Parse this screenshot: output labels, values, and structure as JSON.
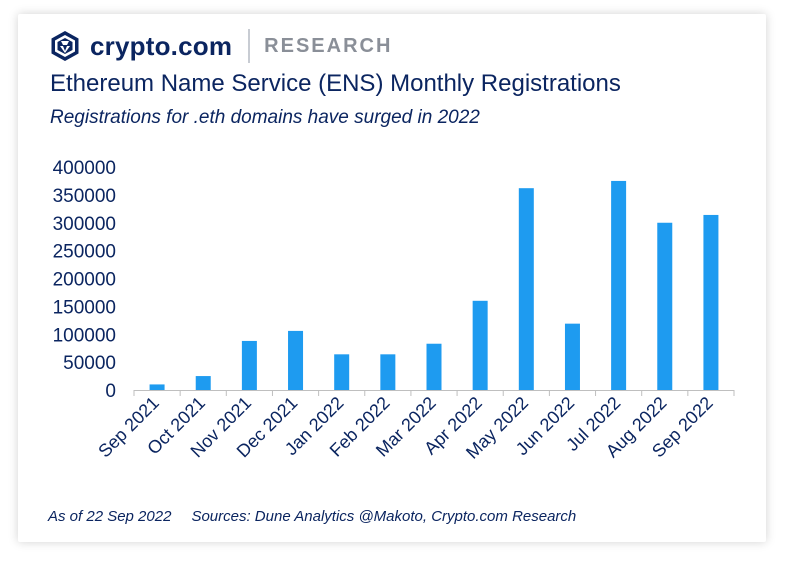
{
  "brand": {
    "name": "crypto.com",
    "section": "RESEARCH"
  },
  "header": {
    "title": "Ethereum Name Service (ENS) Monthly Registrations",
    "subtitle": "Registrations for .eth domains have surged in 2022"
  },
  "footer": {
    "as_of": "As of 22 Sep 2022",
    "sources": "Sources: Dune Analytics @Makoto, Crypto.com Research"
  },
  "colors": {
    "bar": "#1e9bf0",
    "text": "#0b2560",
    "axis": "#bfbfbf"
  },
  "chart_data": {
    "type": "bar",
    "title": "Ethereum Name Service (ENS) Monthly Registrations",
    "subtitle": "Registrations for .eth domains have surged in 2022",
    "xlabel": "",
    "ylabel": "",
    "ylim": [
      0,
      400000
    ],
    "yticks": [
      "0",
      "50000",
      "100000",
      "150000",
      "200000",
      "250000",
      "300000",
      "350000",
      "400000"
    ],
    "grid": false,
    "categories": [
      "Sep 2021",
      "Oct 2021",
      "Nov 2021",
      "Dec 2021",
      "Jan 2022",
      "Feb 2022",
      "Mar 2022",
      "Apr 2022",
      "May 2022",
      "Jun 2022",
      "Jul 2022",
      "Aug 2022",
      "Sep 2022"
    ],
    "values": [
      10000,
      25000,
      88000,
      106000,
      64000,
      64000,
      83000,
      160000,
      362000,
      119000,
      375000,
      300000,
      314000
    ]
  }
}
